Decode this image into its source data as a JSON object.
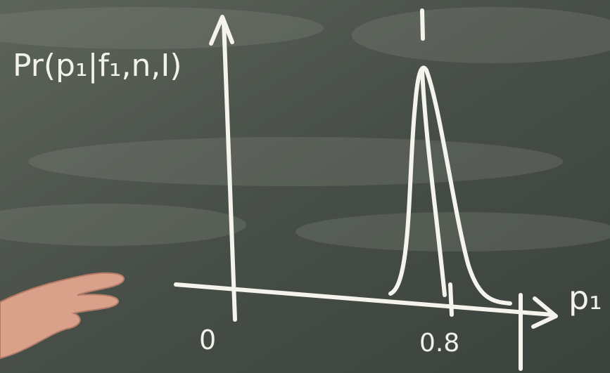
{
  "board": {
    "y_axis_label": "Pr(p₁|f₁,n,I)",
    "x_axis_label": "p₁",
    "tick_labels": [
      "0",
      "0.8"
    ]
  }
}
